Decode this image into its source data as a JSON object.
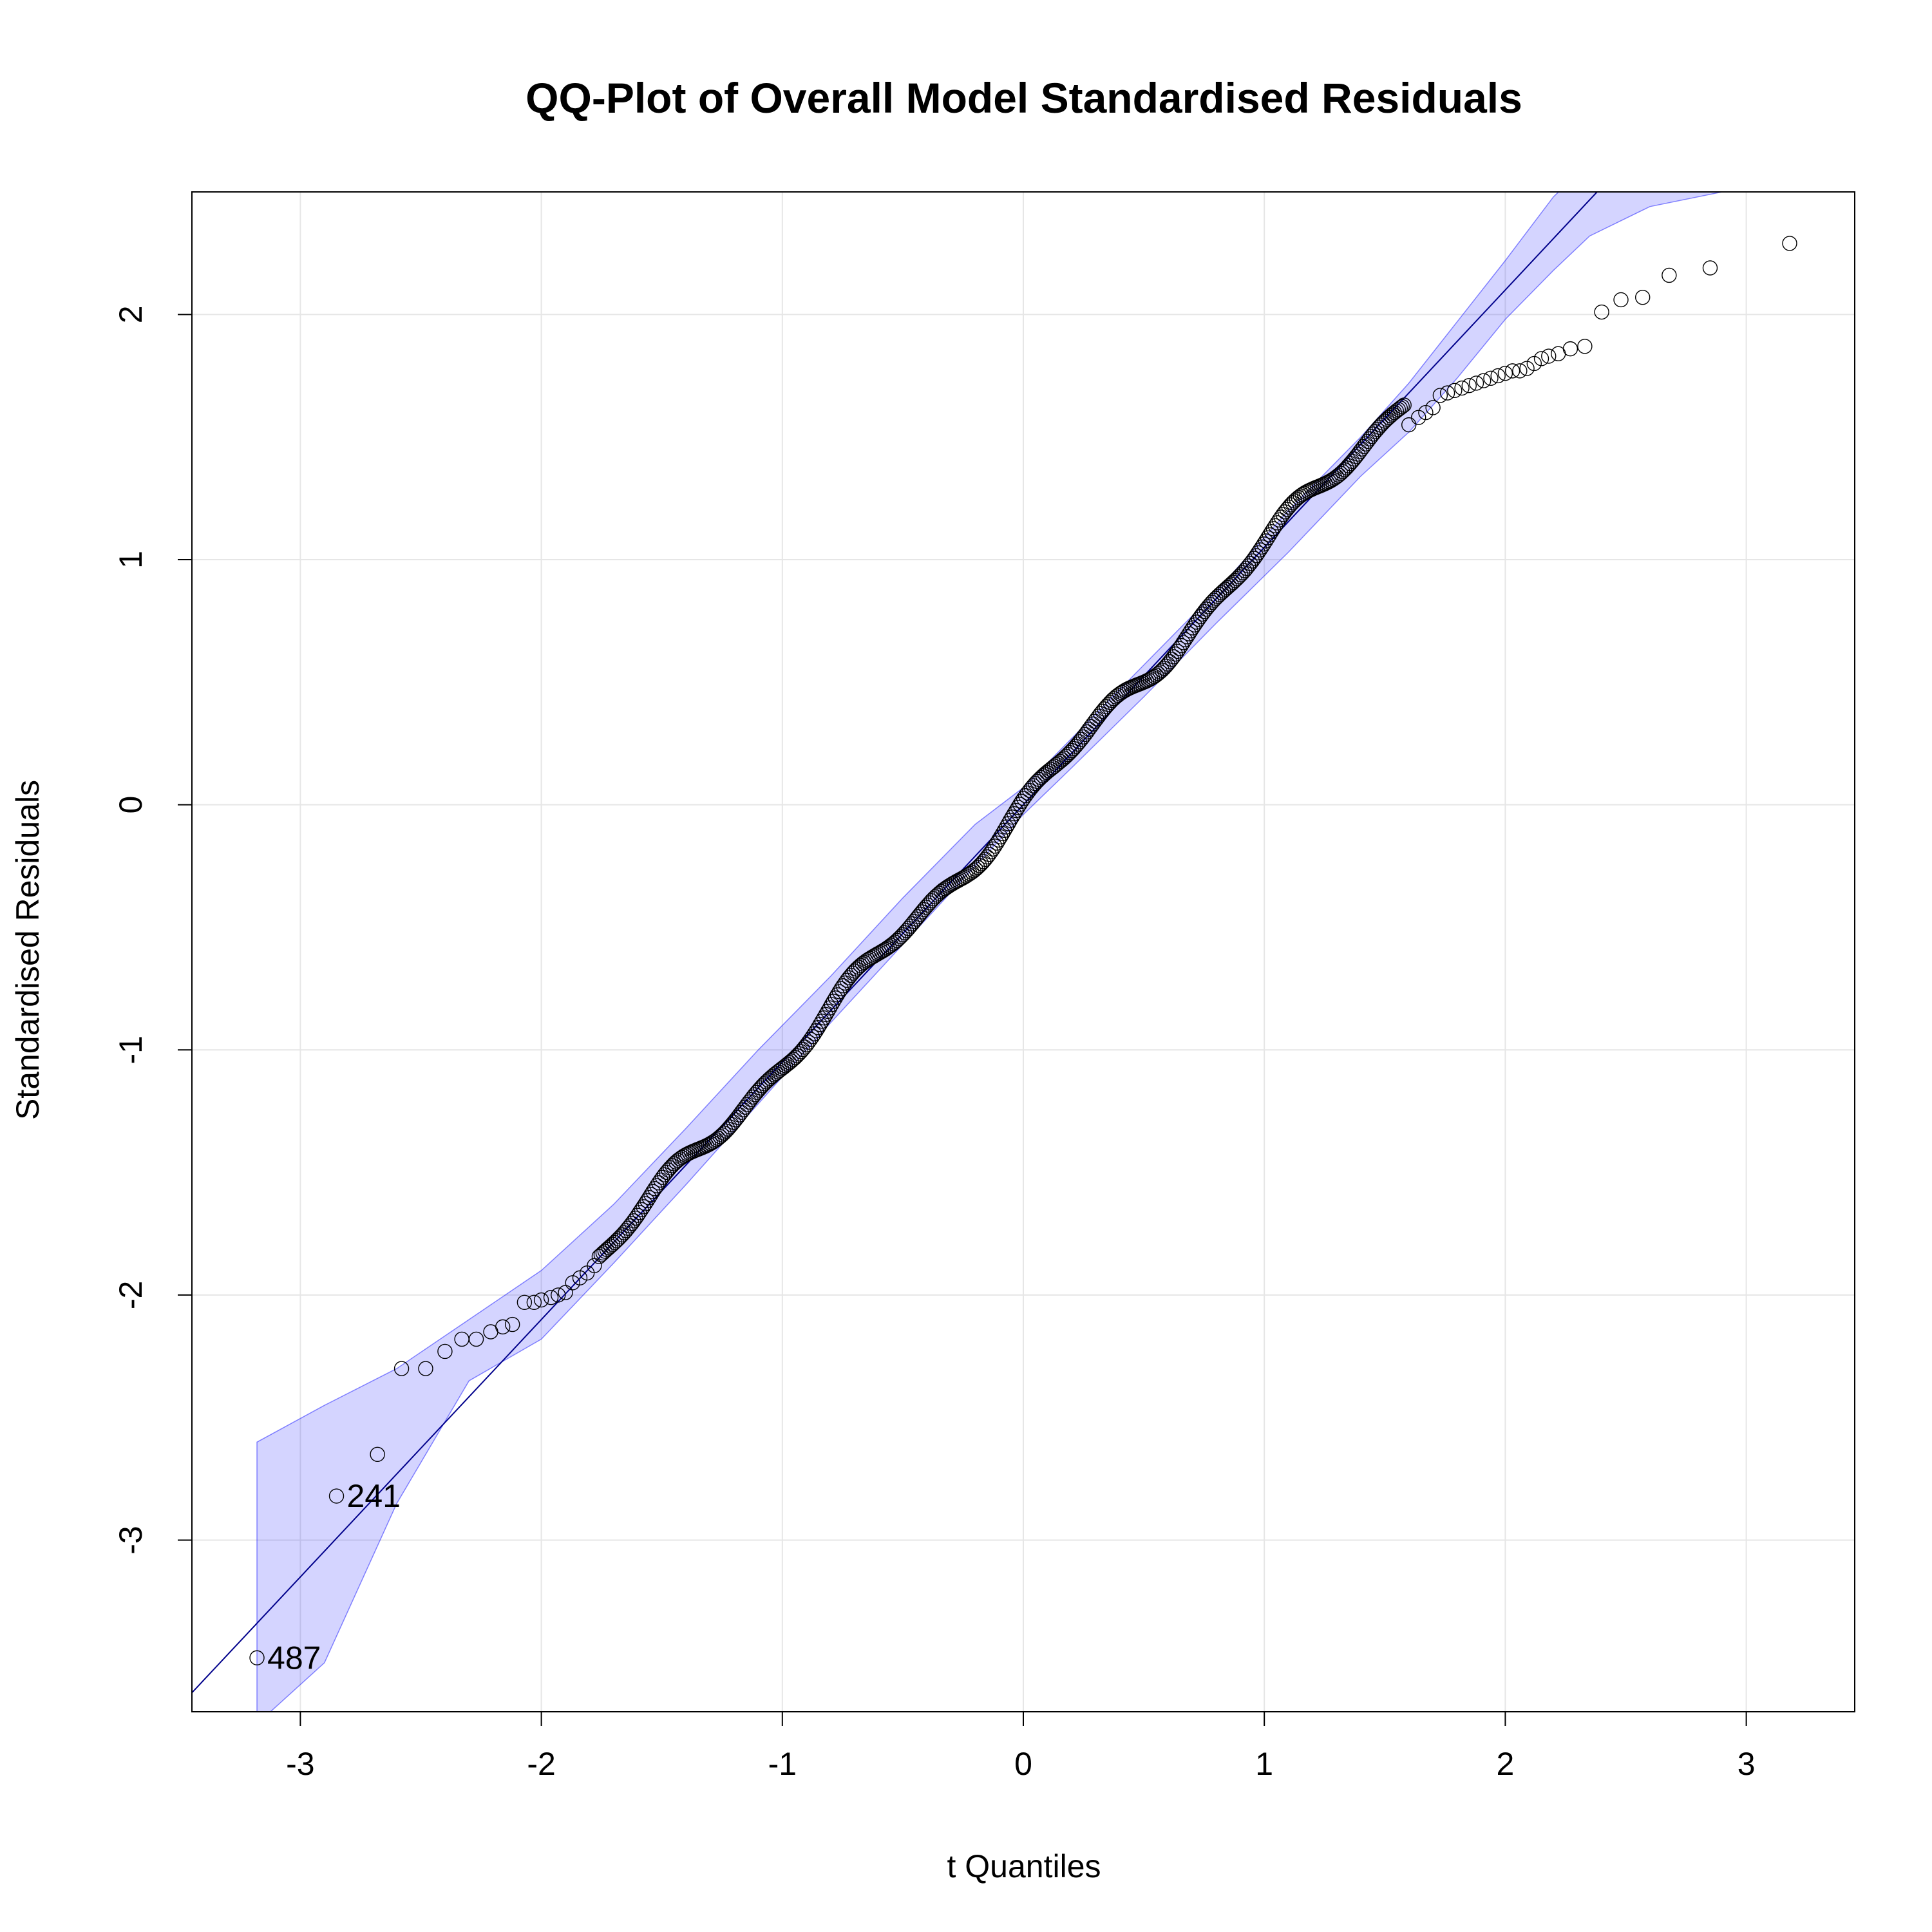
{
  "chart_data": {
    "type": "scatter",
    "title": "QQ-Plot of Overall Model Standardised Residuals",
    "xlabel": "t Quantiles",
    "ylabel": "Standardised Residuals",
    "xlim": [
      -3.45,
      3.45
    ],
    "ylim": [
      -3.7,
      2.5
    ],
    "x_ticks": [
      -3,
      -2,
      -1,
      0,
      1,
      2,
      3
    ],
    "y_ticks": [
      -3,
      -2,
      -1,
      0,
      1,
      2
    ],
    "x_tick_labels": [
      "-3",
      "-2",
      "-1",
      "0",
      "1",
      "2",
      "3"
    ],
    "y_tick_labels": [
      "-3",
      "-2",
      "-1",
      "0",
      "1",
      "2"
    ],
    "grid": true,
    "reference_line": {
      "intercept": 0.0,
      "slope": 1.05,
      "color": "#00008b"
    },
    "confidence_band": {
      "color": "#0000ff",
      "opacity": 0.17,
      "x": [
        -3.18,
        -2.9,
        -2.6,
        -2.3,
        -2.0,
        -1.7,
        -1.4,
        -1.1,
        -0.8,
        -0.5,
        -0.2,
        0.0,
        0.2,
        0.5,
        0.8,
        1.1,
        1.4,
        1.6,
        1.8,
        2.0,
        2.2,
        2.35,
        2.6,
        2.9,
        3.3
      ],
      "lower": [
        -3.75,
        -3.5,
        -2.85,
        -2.35,
        -2.18,
        -1.87,
        -1.55,
        -1.22,
        -0.89,
        -0.57,
        -0.25,
        -0.04,
        0.15,
        0.44,
        0.74,
        1.03,
        1.34,
        1.52,
        1.74,
        1.98,
        2.18,
        2.32,
        2.44,
        2.5,
        2.6
      ],
      "upper": [
        -2.6,
        -2.45,
        -2.3,
        -2.1,
        -1.9,
        -1.63,
        -1.32,
        -1.0,
        -0.7,
        -0.38,
        -0.08,
        0.07,
        0.27,
        0.57,
        0.87,
        1.2,
        1.5,
        1.72,
        1.97,
        2.22,
        2.48,
        2.62,
        2.72,
        2.8,
        2.95
      ]
    },
    "outlier_points": [
      {
        "x": -3.18,
        "y": -3.48,
        "label": "487"
      },
      {
        "x": -2.85,
        "y": -2.82,
        "label": "241"
      },
      {
        "x": -2.68,
        "y": -2.65,
        "label": ""
      },
      {
        "x": -2.58,
        "y": -2.3,
        "label": ""
      },
      {
        "x": -2.48,
        "y": -2.3,
        "label": ""
      },
      {
        "x": -2.4,
        "y": -2.23,
        "label": ""
      },
      {
        "x": -2.33,
        "y": -2.18,
        "label": ""
      },
      {
        "x": -2.27,
        "y": -2.18,
        "label": ""
      },
      {
        "x": -2.21,
        "y": -2.15,
        "label": ""
      },
      {
        "x": -2.16,
        "y": -2.13,
        "label": ""
      },
      {
        "x": -2.12,
        "y": -2.12,
        "label": ""
      },
      {
        "x": -2.07,
        "y": -2.03,
        "label": ""
      },
      {
        "x": -2.03,
        "y": -2.03,
        "label": ""
      },
      {
        "x": -2.0,
        "y": -2.02,
        "label": ""
      },
      {
        "x": -1.96,
        "y": -2.01,
        "label": ""
      },
      {
        "x": -1.93,
        "y": -2.0,
        "label": ""
      },
      {
        "x": -1.9,
        "y": -1.99,
        "label": ""
      },
      {
        "x": -1.87,
        "y": -1.95,
        "label": ""
      },
      {
        "x": -1.84,
        "y": -1.93,
        "label": ""
      },
      {
        "x": -1.81,
        "y": -1.91,
        "label": ""
      },
      {
        "x": -1.78,
        "y": -1.88,
        "label": ""
      },
      {
        "x": 1.6,
        "y": 1.55,
        "label": ""
      },
      {
        "x": 1.64,
        "y": 1.58,
        "label": ""
      },
      {
        "x": 1.67,
        "y": 1.6,
        "label": ""
      },
      {
        "x": 1.7,
        "y": 1.62,
        "label": ""
      },
      {
        "x": 1.73,
        "y": 1.67,
        "label": ""
      },
      {
        "x": 1.76,
        "y": 1.68,
        "label": ""
      },
      {
        "x": 1.79,
        "y": 1.69,
        "label": ""
      },
      {
        "x": 1.82,
        "y": 1.7,
        "label": ""
      },
      {
        "x": 1.85,
        "y": 1.71,
        "label": ""
      },
      {
        "x": 1.88,
        "y": 1.72,
        "label": ""
      },
      {
        "x": 1.91,
        "y": 1.73,
        "label": ""
      },
      {
        "x": 1.94,
        "y": 1.74,
        "label": ""
      },
      {
        "x": 1.97,
        "y": 1.75,
        "label": ""
      },
      {
        "x": 2.0,
        "y": 1.76,
        "label": ""
      },
      {
        "x": 2.03,
        "y": 1.77,
        "label": ""
      },
      {
        "x": 2.06,
        "y": 1.77,
        "label": ""
      },
      {
        "x": 2.09,
        "y": 1.78,
        "label": ""
      },
      {
        "x": 2.12,
        "y": 1.8,
        "label": ""
      },
      {
        "x": 2.15,
        "y": 1.82,
        "label": ""
      },
      {
        "x": 2.18,
        "y": 1.83,
        "label": ""
      },
      {
        "x": 2.22,
        "y": 1.84,
        "label": ""
      },
      {
        "x": 2.27,
        "y": 1.86,
        "label": ""
      },
      {
        "x": 2.33,
        "y": 1.87,
        "label": ""
      },
      {
        "x": 2.4,
        "y": 2.01,
        "label": ""
      },
      {
        "x": 2.48,
        "y": 2.06,
        "label": ""
      },
      {
        "x": 2.57,
        "y": 2.07,
        "label": ""
      },
      {
        "x": 2.68,
        "y": 2.16,
        "label": ""
      },
      {
        "x": 2.85,
        "y": 2.19,
        "label": ""
      },
      {
        "x": 3.18,
        "y": 2.29,
        "label": ""
      }
    ],
    "dense_points_range": {
      "x_start": -1.76,
      "x_end": 1.58,
      "count": 420
    }
  }
}
